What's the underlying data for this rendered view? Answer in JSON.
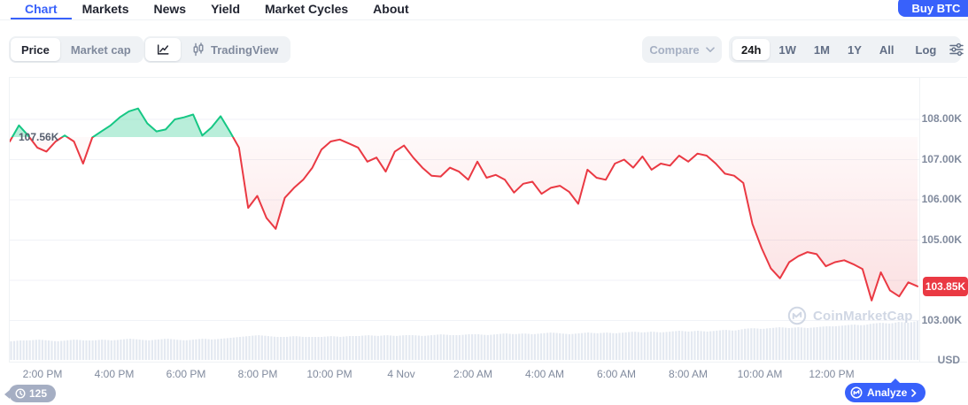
{
  "nav": {
    "tabs": [
      {
        "label": "Chart",
        "active": true
      },
      {
        "label": "Markets"
      },
      {
        "label": "News"
      },
      {
        "label": "Yield"
      },
      {
        "label": "Market Cycles"
      },
      {
        "label": "About"
      }
    ],
    "buy_button_label": "Buy BTC"
  },
  "toolbar": {
    "metric_toggle": {
      "price_label": "Price",
      "market_cap_label": "Market cap",
      "selected": "Price"
    },
    "chart_style": {
      "tradingview_label": "TradingView",
      "selected": "line"
    },
    "compare_label": "Compare",
    "ranges": {
      "r_24h": "24h",
      "r_1w": "1W",
      "r_1m": "1M",
      "r_1y": "1Y",
      "r_all": "All",
      "log_label": "Log",
      "selected": "24h"
    }
  },
  "chart": {
    "open_price_label": "107.56K",
    "current_price_label": "103.85K",
    "unit_label": "USD",
    "watermark_label": "CoinMarketCap",
    "candle_countdown": "125",
    "analyze_label": "Analyze"
  },
  "chart_data": {
    "type": "line",
    "title": "BTC price, 24h, USD (thousands)",
    "baseline_value": 107.56,
    "last_value": 103.85,
    "high": 108.27,
    "low": 103.45,
    "unit": "K USD",
    "ylim": [
      102.8,
      108.6
    ],
    "grid": true,
    "y_ticks": [
      {
        "value": 108,
        "label": "108.00K"
      },
      {
        "value": 107,
        "label": "107.00K"
      },
      {
        "value": 106,
        "label": "106.00K"
      },
      {
        "value": 105,
        "label": "105.00K"
      },
      {
        "value": 103,
        "label": "103.00K"
      }
    ],
    "gridline_values": [
      108,
      107,
      106,
      105,
      104,
      103
    ],
    "x_labels": [
      "2:00 PM",
      "4:00 PM",
      "6:00 PM",
      "8:00 PM",
      "10:00 PM",
      "4 Nov",
      "2:00 AM",
      "4:00 AM",
      "6:00 AM",
      "8:00 AM",
      "10:00 AM",
      "12:00 PM"
    ],
    "points": [
      107.45,
      107.85,
      107.6,
      107.3,
      107.2,
      107.45,
      107.6,
      107.45,
      106.9,
      107.55,
      107.7,
      107.85,
      108.05,
      108.2,
      108.27,
      107.9,
      107.7,
      107.75,
      108.0,
      108.05,
      108.12,
      107.6,
      107.8,
      108.08,
      107.7,
      107.3,
      105.8,
      106.1,
      105.55,
      105.28,
      106.05,
      106.3,
      106.5,
      106.8,
      107.25,
      107.45,
      107.5,
      107.4,
      107.3,
      106.95,
      107.05,
      106.7,
      107.2,
      107.35,
      107.05,
      106.8,
      106.6,
      106.58,
      106.8,
      106.7,
      106.5,
      106.95,
      106.55,
      106.62,
      106.5,
      106.18,
      106.4,
      106.45,
      106.15,
      106.3,
      106.35,
      106.2,
      105.9,
      106.75,
      106.55,
      106.5,
      106.9,
      107.0,
      106.8,
      107.08,
      106.75,
      106.9,
      106.85,
      107.1,
      106.95,
      107.15,
      107.1,
      106.9,
      106.65,
      106.6,
      106.42,
      105.4,
      104.8,
      104.3,
      104.05,
      104.45,
      104.6,
      104.7,
      104.65,
      104.35,
      104.45,
      104.5,
      104.4,
      104.28,
      103.5,
      104.2,
      103.75,
      103.6,
      103.95,
      103.85
    ],
    "volume": [
      21,
      22,
      22,
      23,
      22,
      21,
      22,
      23,
      22,
      22,
      23,
      22,
      23,
      24,
      23,
      22,
      23,
      24,
      23,
      22,
      23,
      24,
      23,
      24,
      25,
      26,
      27,
      28,
      27,
      26,
      26,
      27,
      26,
      26,
      26,
      27,
      26,
      27,
      27,
      28,
      27,
      28,
      27,
      28,
      28,
      27,
      28,
      29,
      28,
      28,
      29,
      29,
      28,
      29,
      30,
      29,
      30,
      29,
      30,
      31,
      30,
      29,
      30,
      31,
      30,
      31,
      30,
      31,
      32,
      31,
      32,
      31,
      32,
      33,
      32,
      33,
      32,
      33,
      34,
      33,
      35,
      36,
      35,
      36,
      37,
      36,
      37,
      36,
      37,
      38,
      38,
      39,
      40,
      39,
      41,
      42,
      41,
      43,
      42,
      44
    ],
    "colors": {
      "up": "#16c784",
      "down": "#ea3943",
      "up_fill": "rgba(22,199,132,0.30)",
      "grid": "#f0f2f7",
      "volume_bar": "#e4e9f1"
    }
  },
  "colors": {
    "brand_blue": "#3861fb",
    "red": "#ea3943",
    "green": "#16c784",
    "pill_bg": "#eff2f5",
    "text_dark": "#222531",
    "text_gray": "#616e85",
    "text_light": "#a6b0c3",
    "axis_text": "#808a9d",
    "watermark": "#d0d7e4",
    "countdown_bg": "#a5aec3"
  }
}
